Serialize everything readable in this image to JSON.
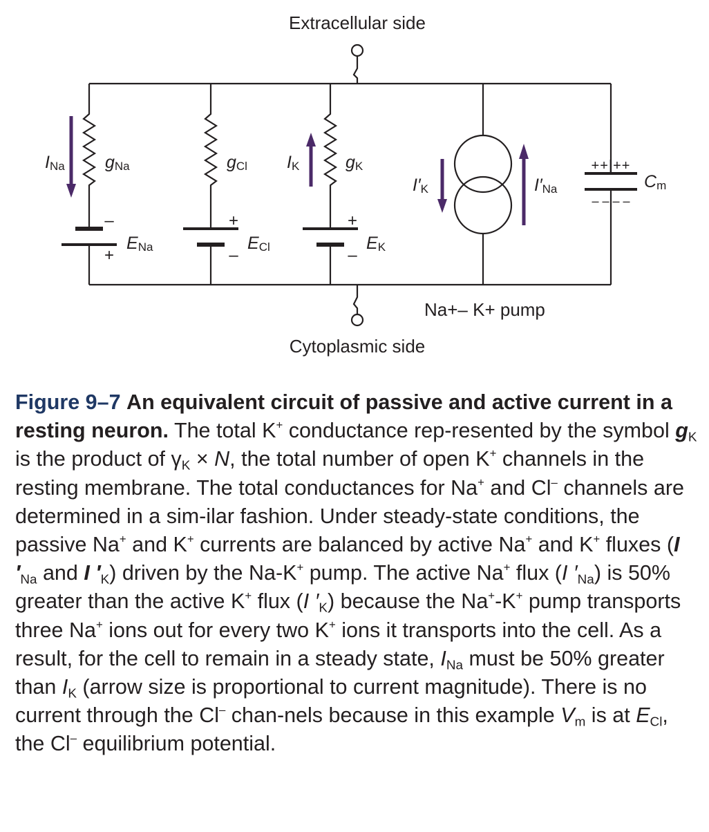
{
  "diagram": {
    "extracellular_label": "Extracellular side",
    "cytoplasmic_label": "Cytoplasmic side",
    "na_branch": {
      "current_symbol": "I",
      "current_sub": "Na",
      "conductance_symbol": "g",
      "conductance_sub": "Na",
      "battery_symbol": "E",
      "battery_sub": "Na",
      "top_sign": "–",
      "bottom_sign": "+"
    },
    "cl_branch": {
      "conductance_symbol": "g",
      "conductance_sub": "Cl",
      "battery_symbol": "E",
      "battery_sub": "Cl",
      "top_sign": "+",
      "bottom_sign": "–"
    },
    "k_branch": {
      "current_symbol": "I",
      "current_sub": "K",
      "conductance_symbol": "g",
      "conductance_sub": "K",
      "battery_symbol": "E",
      "battery_sub": "K",
      "top_sign": "+",
      "bottom_sign": "–"
    },
    "pump": {
      "k_current_symbol": "I′",
      "k_current_sub": "K",
      "na_current_symbol": "I′",
      "na_current_sub": "Na",
      "label": "Na+– K+ pump"
    },
    "capacitor": {
      "symbol": "C",
      "sub": "m",
      "top_charges": "++|++",
      "bottom_charges": "– – – –"
    },
    "arrow_color": "#4b2a68"
  },
  "caption": {
    "figure_label": "Figure 9–7",
    "title": "An equivalent circuit of passive and active current in a resting neuron.",
    "segments": {
      "s1": "The total K",
      "s2": " conductance rep-resented by the symbol ",
      "s3": " is the product of γ",
      "s4": " × ",
      "s5": ", the total number of open K",
      "s6": " channels in the resting membrane. The total conductances for Na",
      "s7": " and Cl",
      "s8": " channels are determined in a sim-ilar fashion. Under steady-state conditions, the passive Na",
      "s9": " and K",
      "s10": " currents are balanced by active Na",
      "s11": " and K",
      "s12": " fluxes (",
      "s13": " and ",
      "s14": ") driven by the Na-K",
      "s15": " pump. The active Na",
      "s16": " flux (",
      "s17": ") is 50% greater than the active K",
      "s18": " flux (",
      "s19": ") because the Na",
      "s20": "-K",
      "s21": " pump transports three Na",
      "s22": " ions out for every two K",
      "s23": " ions it transports into the cell. As a result, for the cell to remain in a steady state, ",
      "s24": " must be 50% greater than ",
      "s25": " (arrow size is proportional to current magnitude). There is no current through the Cl",
      "s26": " chan-nels because in this example ",
      "s27": " is at ",
      "s28": ", the Cl",
      "s29": " equilibrium potential."
    },
    "plus": "+",
    "minus": "–",
    "g": "g",
    "K": "K",
    "Na": "Na",
    "Cl": "Cl",
    "m": "m",
    "N": "N",
    "I": "I",
    "Iprime": "I ′",
    "V": "V",
    "E": "E"
  }
}
